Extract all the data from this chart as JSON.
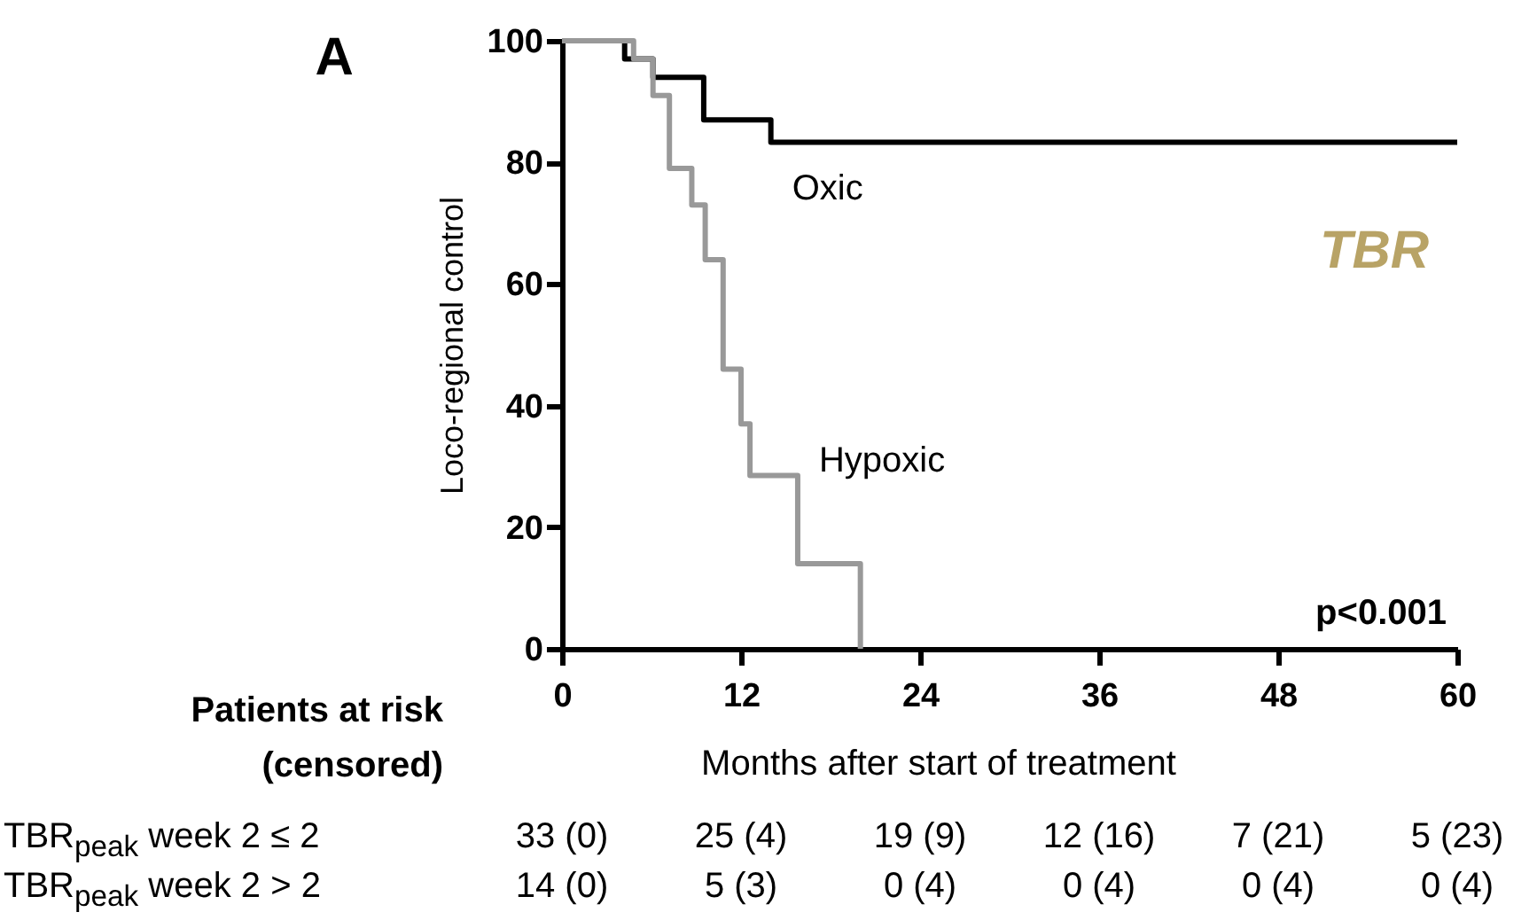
{
  "chart_data": {
    "type": "step",
    "xlabel": "Months after start of treatment",
    "ylabel": "Loco-regional control",
    "xlim": [
      0,
      60
    ],
    "xticks": [
      0,
      12,
      24,
      36,
      48,
      60
    ],
    "ylim": [
      0,
      100
    ],
    "yticks": [
      0,
      20,
      40,
      60,
      80,
      100
    ],
    "grid": false,
    "legend": false,
    "marker": "none",
    "line_style": "solid",
    "series": [
      {
        "name": "Oxic",
        "color": "#000000",
        "x": [
          0,
          4.2,
          6.1,
          9.5,
          14.0,
          60
        ],
        "values": [
          100,
          97,
          94,
          87,
          83.3,
          83.3
        ]
      },
      {
        "name": "Hypoxic",
        "color": "#999999",
        "x": [
          0,
          4.8,
          6.1,
          7.2,
          8.7,
          9.6,
          10.8,
          12.0,
          12.6,
          15.8,
          20.0
        ],
        "values": [
          100,
          97,
          91,
          79,
          73,
          64,
          46,
          37,
          28.5,
          14,
          0
        ]
      }
    ],
    "annotations": [
      "A",
      "TBR",
      "p<0.001",
      "Patients at risk",
      "(censored)",
      "TBR$_{peak}$ week 2 ≤ 2",
      "33 (0)",
      "25 (4)",
      "19 (9)",
      "12 (16)",
      "7 (21)",
      "5 (23)",
      "TBR$_{peak}$ week 2 > 2",
      "14 (0)",
      "5 (3)",
      "0 (4)",
      "0 (4)",
      "0 (4)",
      "0 (4)"
    ]
  }
}
